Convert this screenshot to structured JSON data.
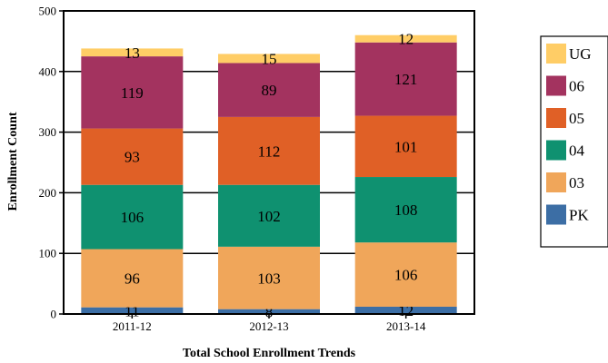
{
  "chart_data": {
    "type": "bar",
    "stacked": true,
    "title": "",
    "xlabel": "Total School Enrollment Trends",
    "ylabel": "Enrollment Count",
    "ylim": [
      0,
      500
    ],
    "yticks": [
      0,
      100,
      200,
      300,
      400,
      500
    ],
    "grid": true,
    "legend": "right",
    "categories": [
      "2011-12",
      "2012-13",
      "2013-14"
    ],
    "series": [
      {
        "name": "PK",
        "color": "#3c6ea5",
        "values": [
          11,
          8,
          12
        ]
      },
      {
        "name": "03",
        "color": "#f0a65a",
        "values": [
          96,
          103,
          106
        ]
      },
      {
        "name": "04",
        "color": "#0f9170",
        "values": [
          106,
          102,
          108
        ]
      },
      {
        "name": "05",
        "color": "#e06026",
        "values": [
          93,
          112,
          101
        ]
      },
      {
        "name": "06",
        "color": "#a3335f",
        "values": [
          119,
          89,
          121
        ]
      },
      {
        "name": "UG",
        "color": "#ffcd66",
        "values": [
          13,
          15,
          12
        ]
      }
    ]
  }
}
